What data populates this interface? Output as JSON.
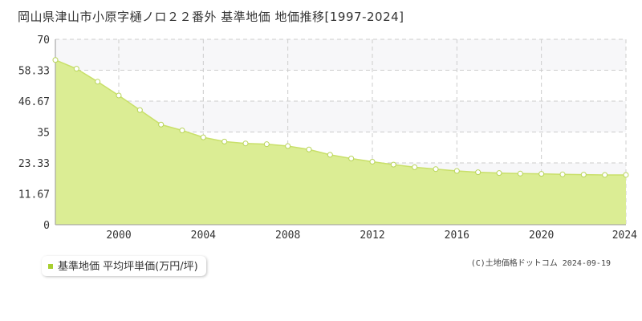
{
  "title": "岡山県津山市小原字樋ノロ２２番外 基準地価 地価推移[1997-2024]",
  "legend_label": "基準地価 平均坪単価(万円/坪)",
  "copyright": "(C)土地価格ドットコム 2024-09-19",
  "colors": {
    "fill": "#dbed94",
    "line": "#c9e06a",
    "marker_fill": "#ffffff",
    "marker_stroke": "#b8d45a",
    "grid": "#cccccc",
    "band": "#f7f7f9",
    "legend_swatch": "#a8cf30"
  },
  "chart_data": {
    "type": "area",
    "title": "岡山県津山市小原字樋ノロ２２番外 基準地価 地価推移[1997-2024]",
    "xlabel": "",
    "ylabel": "",
    "xlim": [
      1997,
      2024
    ],
    "ylim": [
      0,
      70
    ],
    "x_ticks": [
      2000,
      2004,
      2008,
      2012,
      2016,
      2020,
      2024
    ],
    "y_ticks": [
      0,
      11.67,
      23.33,
      35,
      46.67,
      58.33,
      70
    ],
    "y_tick_labels": [
      "0",
      "11.67",
      "23.33",
      "35",
      "46.67",
      "58.33",
      "70"
    ],
    "grid": true,
    "legend_position": "bottom-left",
    "series": [
      {
        "name": "基準地価 平均坪単価(万円/坪)",
        "x": [
          1997,
          1998,
          1999,
          2000,
          2001,
          2002,
          2003,
          2004,
          2005,
          2006,
          2007,
          2008,
          2009,
          2010,
          2011,
          2012,
          2013,
          2014,
          2015,
          2016,
          2017,
          2018,
          2019,
          2020,
          2021,
          2022,
          2023,
          2024
        ],
        "values": [
          62.2,
          58.9,
          54.0,
          48.8,
          43.3,
          37.8,
          35.6,
          33.0,
          31.4,
          30.7,
          30.4,
          29.7,
          28.4,
          26.4,
          25.0,
          23.8,
          22.7,
          21.7,
          21.0,
          20.3,
          19.8,
          19.5,
          19.3,
          19.2,
          19.0,
          18.9,
          18.8,
          18.8
        ]
      }
    ]
  }
}
